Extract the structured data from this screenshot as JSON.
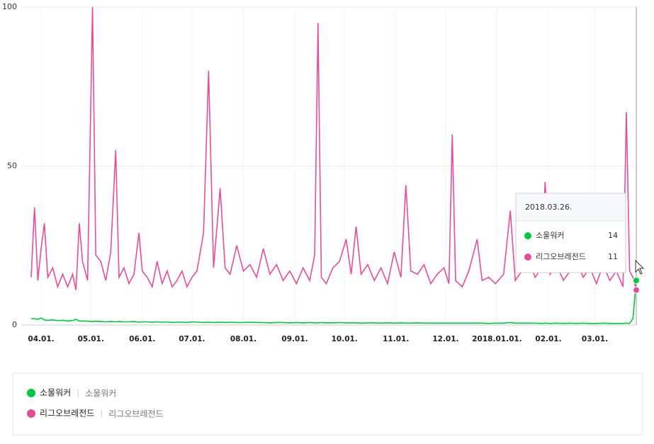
{
  "chart_data": {
    "type": "line",
    "x": [
      0,
      2,
      4,
      6,
      8,
      10,
      13,
      16,
      19,
      22,
      25,
      27,
      29,
      31,
      34,
      37,
      39,
      42,
      45,
      48,
      51,
      53,
      56,
      59,
      62,
      65,
      67,
      70,
      73,
      76,
      79,
      82,
      85,
      88,
      91,
      94,
      97,
      100,
      104,
      107,
      110,
      114,
      117,
      120,
      124,
      128,
      132,
      136,
      140,
      144,
      148,
      152,
      156,
      160,
      164,
      168,
      171,
      173,
      175,
      178,
      182,
      186,
      190,
      193,
      196,
      199,
      203,
      207,
      211,
      215,
      219,
      223,
      226,
      229,
      233,
      237,
      241,
      245,
      249,
      252,
      254,
      256,
      260,
      264,
      269,
      272,
      276,
      280,
      285,
      289,
      292,
      296,
      300,
      304,
      308,
      310,
      313,
      317,
      321,
      325,
      329,
      333,
      337,
      341,
      345,
      349,
      353,
      357,
      359,
      361,
      363,
      365
    ],
    "xlim": [
      0,
      365
    ],
    "xticks": [
      {
        "value": 6,
        "label": "04.01."
      },
      {
        "value": 36,
        "label": "05.01."
      },
      {
        "value": 67,
        "label": "06.01."
      },
      {
        "value": 97,
        "label": "07.01."
      },
      {
        "value": 128,
        "label": "08.01."
      },
      {
        "value": 159,
        "label": "09.01."
      },
      {
        "value": 189,
        "label": "10.01."
      },
      {
        "value": 220,
        "label": "11.01."
      },
      {
        "value": 250,
        "label": "12.01."
      },
      {
        "value": 281,
        "label": "2018.01.01."
      },
      {
        "value": 312,
        "label": "02.01."
      },
      {
        "value": 340,
        "label": "03.01."
      }
    ],
    "ylim": [
      0,
      100
    ],
    "yticks": [
      0,
      50,
      100
    ],
    "grid": true,
    "series": [
      {
        "name": "소울워커",
        "keyword": "소울워커",
        "color": "#00c73c",
        "values": [
          2,
          2,
          1.8,
          2.2,
          1.6,
          1.5,
          1.6,
          1.4,
          1.5,
          1.3,
          1.4,
          1.8,
          1.2,
          1.3,
          1.2,
          1.1,
          1.2,
          1.1,
          1,
          1.1,
          1,
          1.1,
          1,
          1,
          1.1,
          0.9,
          1,
          1,
          0.9,
          1,
          0.9,
          1,
          0.8,
          0.9,
          0.9,
          0.8,
          1,
          0.9,
          0.8,
          0.9,
          0.8,
          0.9,
          0.8,
          0.9,
          0.8,
          0.8,
          0.9,
          0.8,
          0.8,
          0.7,
          0.8,
          0.8,
          0.7,
          0.8,
          0.7,
          0.8,
          0.7,
          0.7,
          0.8,
          0.7,
          0.7,
          0.8,
          0.7,
          0.7,
          0.7,
          0.6,
          0.7,
          0.7,
          0.6,
          0.7,
          0.6,
          0.7,
          0.6,
          0.6,
          0.7,
          0.6,
          0.6,
          0.6,
          0.6,
          0.6,
          0.6,
          0.6,
          0.6,
          0.6,
          0.6,
          0.6,
          0.5,
          0.6,
          0.6,
          0.8,
          0.6,
          0.6,
          0.6,
          0.6,
          0.5,
          0.6,
          0.5,
          0.6,
          0.5,
          0.6,
          0.5,
          0.6,
          0.5,
          0.5,
          0.6,
          0.5,
          0.5,
          0.5,
          0.6,
          0.5,
          2,
          14
        ]
      },
      {
        "name": "리그오브레전드",
        "keyword": "리그오브레전드",
        "color": "#e64d99",
        "values": [
          15,
          37,
          14,
          24,
          32,
          15,
          18,
          12,
          16,
          12,
          16,
          11,
          32,
          20,
          14,
          100,
          22,
          20,
          14,
          23,
          55,
          15,
          18,
          13,
          16,
          29,
          17,
          15,
          12,
          20,
          13,
          17,
          12,
          14,
          17,
          12,
          15,
          17,
          29,
          80,
          18,
          43,
          18,
          16,
          25,
          17,
          19,
          15,
          24,
          16,
          19,
          14,
          17,
          13,
          18,
          14,
          22,
          95,
          15,
          13,
          18,
          20,
          27,
          16,
          31,
          16,
          19,
          14,
          18,
          13,
          23,
          15,
          44,
          17,
          16,
          19,
          13,
          16,
          18,
          13,
          60,
          14,
          12,
          17,
          27,
          14,
          15,
          13,
          16,
          36,
          14,
          17,
          20,
          15,
          18,
          45,
          16,
          19,
          14,
          17,
          20,
          15,
          18,
          13,
          19,
          14,
          17,
          12,
          67,
          17,
          15,
          11
        ]
      }
    ],
    "tooltip": {
      "date": "2018.03.26."
    }
  }
}
